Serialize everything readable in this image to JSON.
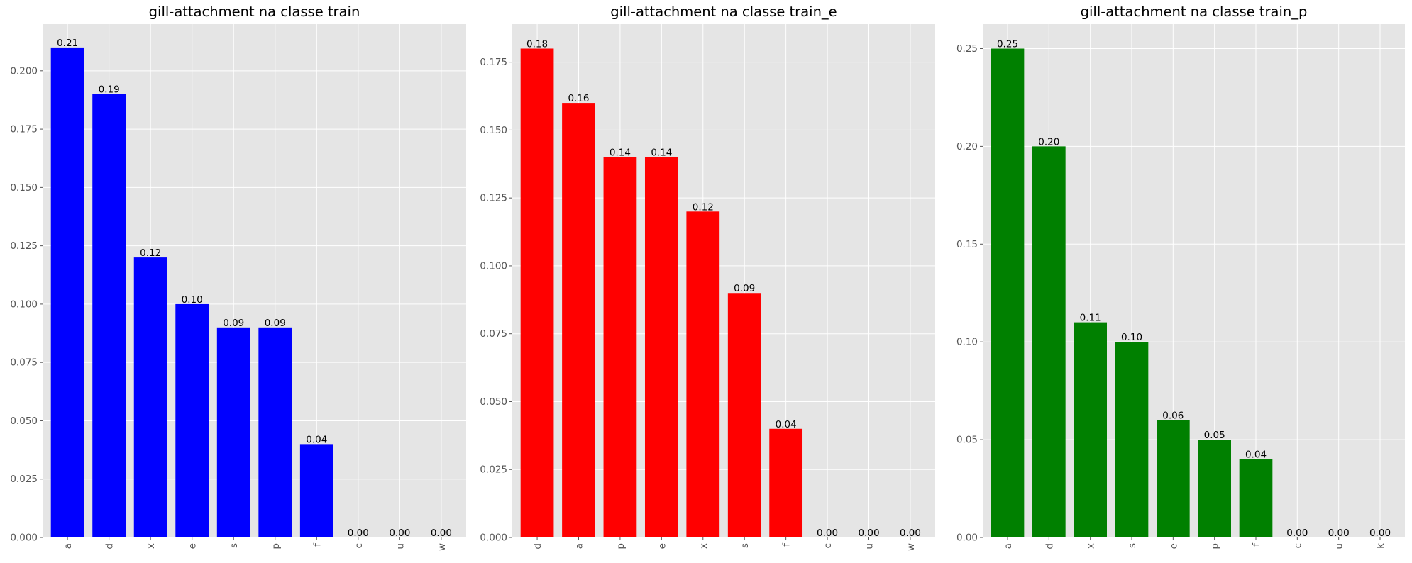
{
  "chart_data": [
    {
      "type": "bar",
      "title": "gill-attachment na classe train",
      "categories": [
        "a",
        "d",
        "x",
        "e",
        "s",
        "p",
        "f",
        "c",
        "u",
        "w"
      ],
      "values": [
        0.21,
        0.19,
        0.12,
        0.1,
        0.09,
        0.09,
        0.04,
        0.0,
        0.0,
        0.0
      ],
      "value_labels": [
        "0.21",
        "0.19",
        "0.12",
        "0.10",
        "0.09",
        "0.09",
        "0.04",
        "0.00",
        "0.00",
        "0.00"
      ],
      "color": "#0000ff",
      "ylim": [
        0,
        0.22
      ],
      "yticks": [
        0.0,
        0.025,
        0.05,
        0.075,
        0.1,
        0.125,
        0.15,
        0.175,
        0.2
      ],
      "ytick_labels": [
        "0.000",
        "0.025",
        "0.050",
        "0.075",
        "0.100",
        "0.125",
        "0.150",
        "0.175",
        "0.200"
      ],
      "grid": true
    },
    {
      "type": "bar",
      "title": "gill-attachment na classe train_e",
      "categories": [
        "d",
        "a",
        "p",
        "e",
        "x",
        "s",
        "f",
        "c",
        "u",
        "w"
      ],
      "values": [
        0.18,
        0.16,
        0.14,
        0.14,
        0.12,
        0.09,
        0.04,
        0.0,
        0.0,
        0.0
      ],
      "value_labels": [
        "0.18",
        "0.16",
        "0.14",
        "0.14",
        "0.12",
        "0.09",
        "0.04",
        "0.00",
        "0.00",
        "0.00"
      ],
      "color": "#ff0000",
      "ylim": [
        0,
        0.189
      ],
      "yticks": [
        0.0,
        0.025,
        0.05,
        0.075,
        0.1,
        0.125,
        0.15,
        0.175
      ],
      "ytick_labels": [
        "0.000",
        "0.025",
        "0.050",
        "0.075",
        "0.100",
        "0.125",
        "0.150",
        "0.175"
      ],
      "grid": true
    },
    {
      "type": "bar",
      "title": "gill-attachment na classe train_p",
      "categories": [
        "a",
        "d",
        "x",
        "s",
        "e",
        "p",
        "f",
        "c",
        "u",
        "k"
      ],
      "values": [
        0.25,
        0.2,
        0.11,
        0.1,
        0.06,
        0.05,
        0.04,
        0.0,
        0.0,
        0.0
      ],
      "value_labels": [
        "0.25",
        "0.20",
        "0.11",
        "0.10",
        "0.06",
        "0.05",
        "0.04",
        "0.00",
        "0.00",
        "0.00"
      ],
      "color": "#008000",
      "ylim": [
        0,
        0.2625
      ],
      "yticks": [
        0.0,
        0.05,
        0.1,
        0.15,
        0.2,
        0.25
      ],
      "ytick_labels": [
        "0.00",
        "0.05",
        "0.10",
        "0.15",
        "0.20",
        "0.25"
      ],
      "grid": true
    }
  ],
  "style": {
    "axes_background": "#e5e5e5",
    "grid_color": "#ffffff",
    "tick_color": "#555555",
    "text_color": "#000000"
  }
}
